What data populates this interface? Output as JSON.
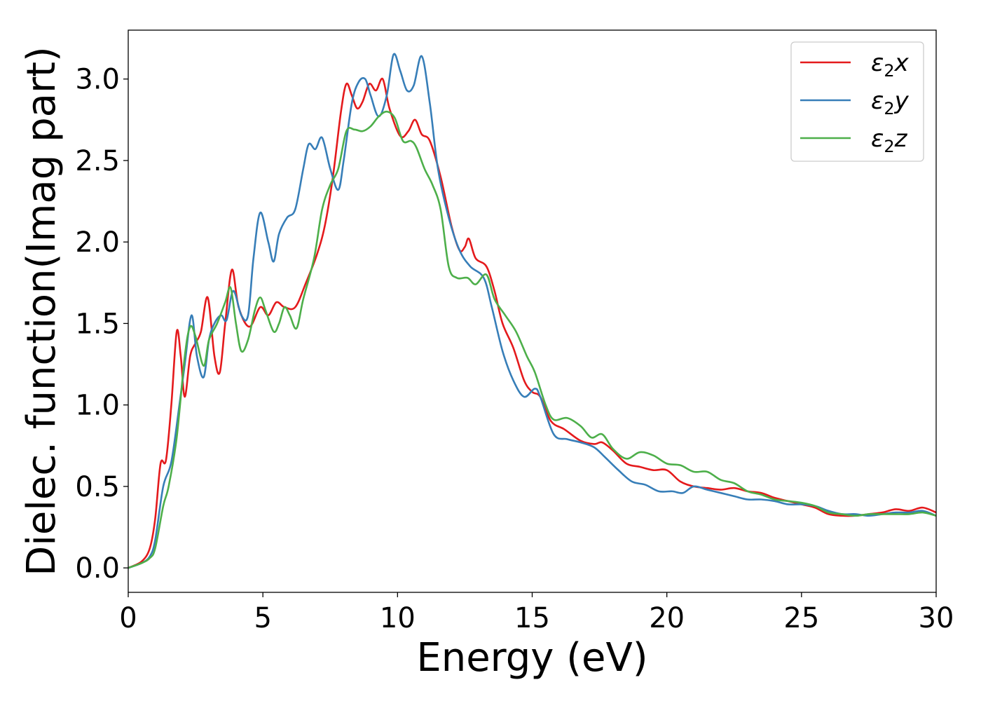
{
  "chart_data": {
    "type": "line",
    "title": "",
    "xlabel": "Energy (eV)",
    "ylabel": "Dielec. function(Imag part)",
    "xlim": [
      0,
      30
    ],
    "ylim": [
      -0.15,
      3.3
    ],
    "xticks": [
      0,
      5,
      10,
      15,
      20,
      25,
      30
    ],
    "xtick_labels": [
      "0",
      "5",
      "10",
      "15",
      "20",
      "25",
      "30"
    ],
    "yticks": [
      0.0,
      0.5,
      1.0,
      1.5,
      2.0,
      2.5,
      3.0
    ],
    "ytick_labels": [
      "0.0",
      "0.5",
      "1.0",
      "1.5",
      "2.0",
      "2.5",
      "3.0"
    ],
    "grid": false,
    "legend_position": "top-right",
    "series": [
      {
        "name": "ε₂x",
        "legend_main": "ε",
        "legend_sub": "2",
        "legend_suffix": "x",
        "color": "#e41a1c",
        "points": [
          [
            0,
            0.0
          ],
          [
            0.5,
            0.04
          ],
          [
            0.8,
            0.12
          ],
          [
            1.0,
            0.3
          ],
          [
            1.2,
            0.64
          ],
          [
            1.4,
            0.66
          ],
          [
            1.6,
            1.0
          ],
          [
            1.8,
            1.45
          ],
          [
            1.95,
            1.3
          ],
          [
            2.1,
            1.05
          ],
          [
            2.3,
            1.3
          ],
          [
            2.5,
            1.38
          ],
          [
            2.7,
            1.45
          ],
          [
            2.95,
            1.66
          ],
          [
            3.2,
            1.3
          ],
          [
            3.4,
            1.2
          ],
          [
            3.6,
            1.5
          ],
          [
            3.85,
            1.83
          ],
          [
            4.1,
            1.6
          ],
          [
            4.5,
            1.48
          ],
          [
            4.9,
            1.6
          ],
          [
            5.2,
            1.55
          ],
          [
            5.5,
            1.63
          ],
          [
            5.8,
            1.6
          ],
          [
            6.2,
            1.6
          ],
          [
            6.6,
            1.75
          ],
          [
            7.0,
            1.92
          ],
          [
            7.3,
            2.1
          ],
          [
            7.6,
            2.4
          ],
          [
            7.9,
            2.8
          ],
          [
            8.1,
            2.97
          ],
          [
            8.3,
            2.9
          ],
          [
            8.5,
            2.82
          ],
          [
            8.7,
            2.86
          ],
          [
            8.95,
            2.97
          ],
          [
            9.2,
            2.93
          ],
          [
            9.45,
            3.0
          ],
          [
            9.7,
            2.82
          ],
          [
            10.1,
            2.65
          ],
          [
            10.4,
            2.68
          ],
          [
            10.65,
            2.75
          ],
          [
            10.9,
            2.66
          ],
          [
            11.2,
            2.62
          ],
          [
            11.6,
            2.4
          ],
          [
            12.0,
            2.1
          ],
          [
            12.3,
            1.95
          ],
          [
            12.5,
            1.97
          ],
          [
            12.65,
            2.02
          ],
          [
            12.9,
            1.9
          ],
          [
            13.3,
            1.85
          ],
          [
            13.6,
            1.7
          ],
          [
            13.9,
            1.5
          ],
          [
            14.3,
            1.35
          ],
          [
            14.7,
            1.15
          ],
          [
            15.0,
            1.08
          ],
          [
            15.3,
            1.05
          ],
          [
            15.7,
            0.9
          ],
          [
            16.2,
            0.85
          ],
          [
            16.8,
            0.78
          ],
          [
            17.3,
            0.76
          ],
          [
            17.6,
            0.77
          ],
          [
            18.0,
            0.72
          ],
          [
            18.5,
            0.64
          ],
          [
            19.0,
            0.62
          ],
          [
            19.5,
            0.6
          ],
          [
            20.0,
            0.6
          ],
          [
            20.5,
            0.53
          ],
          [
            21.0,
            0.5
          ],
          [
            21.5,
            0.49
          ],
          [
            22.0,
            0.48
          ],
          [
            22.5,
            0.49
          ],
          [
            23.0,
            0.47
          ],
          [
            23.5,
            0.46
          ],
          [
            24.0,
            0.43
          ],
          [
            24.5,
            0.41
          ],
          [
            25.0,
            0.39
          ],
          [
            25.5,
            0.37
          ],
          [
            26.0,
            0.33
          ],
          [
            26.5,
            0.32
          ],
          [
            27.0,
            0.32
          ],
          [
            27.5,
            0.33
          ],
          [
            28.0,
            0.34
          ],
          [
            28.5,
            0.36
          ],
          [
            29.0,
            0.35
          ],
          [
            29.5,
            0.37
          ],
          [
            30.0,
            0.34
          ]
        ]
      },
      {
        "name": "ε₂y",
        "legend_main": "ε",
        "legend_sub": "2",
        "legend_suffix": "y",
        "color": "#377eb8",
        "points": [
          [
            0,
            0.0
          ],
          [
            0.5,
            0.03
          ],
          [
            0.8,
            0.07
          ],
          [
            1.0,
            0.17
          ],
          [
            1.3,
            0.5
          ],
          [
            1.6,
            0.65
          ],
          [
            1.9,
            1.0
          ],
          [
            2.1,
            1.25
          ],
          [
            2.35,
            1.55
          ],
          [
            2.55,
            1.3
          ],
          [
            2.8,
            1.17
          ],
          [
            3.0,
            1.4
          ],
          [
            3.2,
            1.5
          ],
          [
            3.45,
            1.55
          ],
          [
            3.65,
            1.52
          ],
          [
            3.9,
            1.7
          ],
          [
            4.2,
            1.55
          ],
          [
            4.45,
            1.55
          ],
          [
            4.65,
            1.9
          ],
          [
            4.9,
            2.18
          ],
          [
            5.2,
            2.0
          ],
          [
            5.4,
            1.88
          ],
          [
            5.6,
            2.05
          ],
          [
            5.9,
            2.15
          ],
          [
            6.2,
            2.2
          ],
          [
            6.5,
            2.45
          ],
          [
            6.7,
            2.6
          ],
          [
            6.95,
            2.57
          ],
          [
            7.2,
            2.64
          ],
          [
            7.5,
            2.45
          ],
          [
            7.8,
            2.32
          ],
          [
            8.0,
            2.5
          ],
          [
            8.3,
            2.85
          ],
          [
            8.55,
            2.98
          ],
          [
            8.8,
            3.0
          ],
          [
            9.0,
            2.9
          ],
          [
            9.3,
            2.77
          ],
          [
            9.6,
            2.9
          ],
          [
            9.85,
            3.15
          ],
          [
            10.1,
            3.05
          ],
          [
            10.35,
            2.93
          ],
          [
            10.6,
            2.96
          ],
          [
            10.9,
            3.14
          ],
          [
            11.2,
            2.85
          ],
          [
            11.5,
            2.45
          ],
          [
            11.9,
            2.15
          ],
          [
            12.3,
            1.95
          ],
          [
            12.7,
            1.85
          ],
          [
            13.2,
            1.78
          ],
          [
            13.5,
            1.6
          ],
          [
            13.9,
            1.33
          ],
          [
            14.3,
            1.15
          ],
          [
            14.7,
            1.05
          ],
          [
            15.1,
            1.1
          ],
          [
            15.3,
            1.05
          ],
          [
            15.8,
            0.82
          ],
          [
            16.3,
            0.79
          ],
          [
            16.8,
            0.77
          ],
          [
            17.3,
            0.74
          ],
          [
            17.7,
            0.68
          ],
          [
            18.2,
            0.6
          ],
          [
            18.7,
            0.53
          ],
          [
            19.2,
            0.51
          ],
          [
            19.7,
            0.47
          ],
          [
            20.2,
            0.47
          ],
          [
            20.6,
            0.46
          ],
          [
            21.0,
            0.5
          ],
          [
            21.5,
            0.48
          ],
          [
            22.0,
            0.46
          ],
          [
            22.5,
            0.44
          ],
          [
            23.0,
            0.42
          ],
          [
            23.5,
            0.42
          ],
          [
            24.0,
            0.41
          ],
          [
            24.5,
            0.39
          ],
          [
            25.0,
            0.39
          ],
          [
            25.5,
            0.38
          ],
          [
            26.0,
            0.35
          ],
          [
            26.5,
            0.33
          ],
          [
            27.0,
            0.33
          ],
          [
            27.5,
            0.32
          ],
          [
            28.0,
            0.33
          ],
          [
            28.5,
            0.34
          ],
          [
            29.0,
            0.34
          ],
          [
            29.5,
            0.35
          ],
          [
            30.0,
            0.32
          ]
        ]
      },
      {
        "name": "ε₂z",
        "legend_main": "ε",
        "legend_sub": "2",
        "legend_suffix": "z",
        "color": "#4daf4a",
        "points": [
          [
            0,
            0.0
          ],
          [
            0.5,
            0.03
          ],
          [
            0.8,
            0.06
          ],
          [
            1.0,
            0.12
          ],
          [
            1.3,
            0.38
          ],
          [
            1.5,
            0.5
          ],
          [
            1.8,
            0.8
          ],
          [
            2.1,
            1.3
          ],
          [
            2.3,
            1.48
          ],
          [
            2.5,
            1.42
          ],
          [
            2.8,
            1.24
          ],
          [
            3.0,
            1.4
          ],
          [
            3.3,
            1.5
          ],
          [
            3.6,
            1.63
          ],
          [
            3.8,
            1.72
          ],
          [
            4.0,
            1.5
          ],
          [
            4.2,
            1.33
          ],
          [
            4.45,
            1.4
          ],
          [
            4.7,
            1.58
          ],
          [
            4.9,
            1.66
          ],
          [
            5.1,
            1.58
          ],
          [
            5.4,
            1.45
          ],
          [
            5.6,
            1.5
          ],
          [
            5.8,
            1.6
          ],
          [
            6.0,
            1.55
          ],
          [
            6.25,
            1.47
          ],
          [
            6.5,
            1.65
          ],
          [
            6.9,
            1.9
          ],
          [
            7.2,
            2.2
          ],
          [
            7.5,
            2.35
          ],
          [
            7.8,
            2.45
          ],
          [
            8.1,
            2.68
          ],
          [
            8.4,
            2.69
          ],
          [
            8.7,
            2.68
          ],
          [
            9.0,
            2.71
          ],
          [
            9.3,
            2.77
          ],
          [
            9.6,
            2.8
          ],
          [
            9.9,
            2.76
          ],
          [
            10.2,
            2.62
          ],
          [
            10.5,
            2.62
          ],
          [
            10.7,
            2.58
          ],
          [
            11.0,
            2.45
          ],
          [
            11.3,
            2.35
          ],
          [
            11.6,
            2.2
          ],
          [
            11.9,
            1.85
          ],
          [
            12.2,
            1.78
          ],
          [
            12.6,
            1.78
          ],
          [
            12.9,
            1.74
          ],
          [
            13.3,
            1.8
          ],
          [
            13.6,
            1.65
          ],
          [
            14.0,
            1.55
          ],
          [
            14.4,
            1.45
          ],
          [
            14.8,
            1.3
          ],
          [
            15.1,
            1.2
          ],
          [
            15.5,
            1.0
          ],
          [
            15.8,
            0.91
          ],
          [
            16.3,
            0.92
          ],
          [
            16.8,
            0.87
          ],
          [
            17.2,
            0.8
          ],
          [
            17.6,
            0.82
          ],
          [
            18.0,
            0.73
          ],
          [
            18.5,
            0.67
          ],
          [
            19.0,
            0.71
          ],
          [
            19.5,
            0.69
          ],
          [
            20.0,
            0.64
          ],
          [
            20.5,
            0.63
          ],
          [
            21.0,
            0.59
          ],
          [
            21.5,
            0.59
          ],
          [
            22.0,
            0.54
          ],
          [
            22.5,
            0.52
          ],
          [
            23.0,
            0.47
          ],
          [
            23.5,
            0.45
          ],
          [
            24.0,
            0.42
          ],
          [
            24.5,
            0.41
          ],
          [
            25.0,
            0.4
          ],
          [
            25.5,
            0.38
          ],
          [
            26.0,
            0.34
          ],
          [
            26.5,
            0.33
          ],
          [
            27.0,
            0.32
          ],
          [
            27.5,
            0.33
          ],
          [
            28.0,
            0.33
          ],
          [
            28.5,
            0.33
          ],
          [
            29.0,
            0.33
          ],
          [
            29.5,
            0.34
          ],
          [
            30.0,
            0.32
          ]
        ]
      }
    ]
  }
}
